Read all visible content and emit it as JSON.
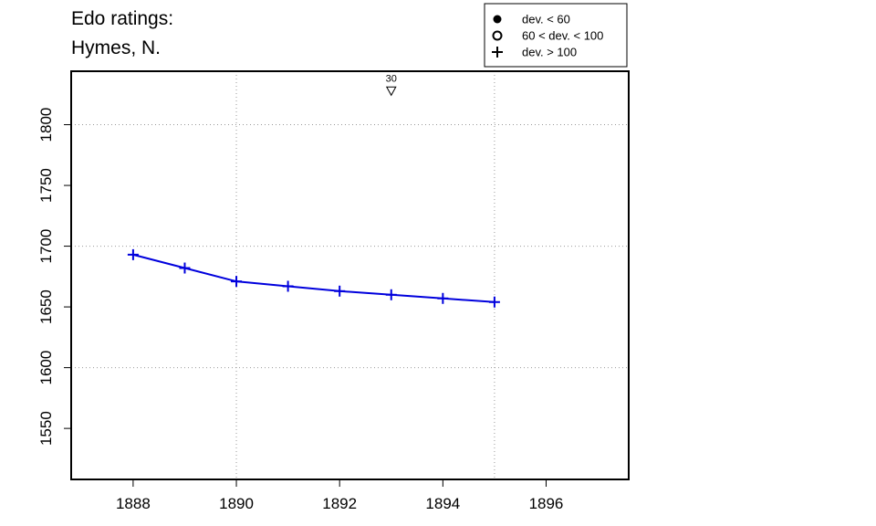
{
  "title": [
    "Edo ratings:",
    "Hymes, N."
  ],
  "chart_data": {
    "type": "line",
    "xlim": [
      1886.8,
      1897.6
    ],
    "ylim": [
      1508,
      1844
    ],
    "x_ticks": [
      1888,
      1890,
      1892,
      1894,
      1896
    ],
    "y_ticks": [
      1550,
      1600,
      1650,
      1700,
      1750,
      1800
    ],
    "x_grid": [
      1890,
      1895
    ],
    "y_grid": [
      1600,
      1700,
      1800
    ],
    "series": [
      {
        "color": "#0000dd",
        "marker": "plus",
        "x": [
          1888,
          1889,
          1890,
          1891,
          1892,
          1893,
          1894,
          1895
        ],
        "y": [
          1693,
          1682,
          1671,
          1667,
          1663,
          1660,
          1657,
          1654
        ]
      }
    ],
    "annotations": [
      {
        "x": 1893,
        "y": 1828,
        "marker": "triangle-down",
        "label": "30"
      }
    ],
    "legend": {
      "position": "top-right",
      "entries": [
        {
          "marker": "filled-circle",
          "label": "dev. < 60"
        },
        {
          "marker": "open-circle",
          "label": "60 < dev. < 100"
        },
        {
          "marker": "plus",
          "label": "dev. > 100"
        }
      ]
    }
  }
}
